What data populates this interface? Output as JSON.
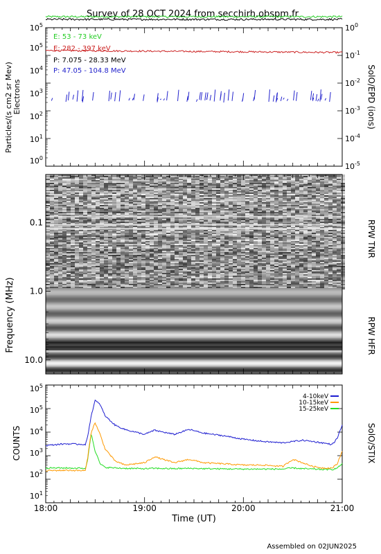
{
  "title": "Survey of 28 OCT 2024 from secchirh.obspm.fr",
  "footer": "Assembled on 02JUN2025",
  "x_axis": {
    "label": "Time (UT)",
    "ticks": [
      "18:00",
      "19:00",
      "20:00",
      "21:00"
    ],
    "range": [
      "18:00",
      "21:00"
    ]
  },
  "colors": {
    "electrons_53_73": "#22cc22",
    "electrons_282_397": "#cc2222",
    "protons_7": "#000000",
    "protons_47": "#2222cc",
    "stix_4_10": "#1c1cd0",
    "stix_10_15": "#ff9900",
    "stix_15_25": "#22dd22"
  },
  "chart_data": [
    {
      "type": "line",
      "panel": "SolO/EPD",
      "ylabel": "Particles/(s cm2 sr Mev)",
      "ylabel2": "Electrons",
      "right_label": "SolO/EPD (ions)",
      "yscale": "log",
      "ylim": [
        1,
        100000
      ],
      "y_ticks": [
        "10^0",
        "10^1",
        "10^2",
        "10^3",
        "10^4",
        "10^5",
        "10^5"
      ],
      "right_ylim": [
        1e-05,
        1
      ],
      "right_ticks": [
        "10^-5",
        "10^-4",
        "10^-3",
        "10^-2",
        "10^-1",
        "10^0"
      ],
      "series": [
        {
          "name": "E: 53 - 73 keV",
          "color_key": "electrons_53_73",
          "level": 250000,
          "jitter": 0.035
        },
        {
          "name": "E: 282 - 397 keV",
          "color_key": "electrons_282_397",
          "level": 15000,
          "jitter": 0.03
        },
        {
          "name": "P: 7.075 - 28.33 MeV",
          "color_key": "protons_7",
          "level": 200000,
          "jitter": 0.035
        },
        {
          "name": "P: 47.05 - 104.8 MeV",
          "color_key": "protons_47",
          "baseline": 200,
          "spike_max": 600
        }
      ]
    },
    {
      "type": "heatmap",
      "panel": "RPW",
      "ylabel": "Frequency (MHz)",
      "yscale": "log",
      "ylim": [
        0.02,
        16
      ],
      "y_ticks": [
        "0.1",
        "1.0",
        "10.0"
      ],
      "tnr_label": "RPW TNR",
      "hfr_label": "RPW HFR",
      "tnr_range_mhz": [
        0.02,
        0.9
      ],
      "hfr_range_mhz": [
        0.9,
        16
      ]
    },
    {
      "type": "line",
      "panel": "SolO/STIX",
      "ylabel": "COUNTS",
      "right_label": "SolO/STIX",
      "yscale": "log",
      "ylim": [
        10,
        1000000
      ],
      "y_ticks": [
        "10^1",
        "10^2",
        "10^3",
        "10^4",
        "10^5",
        "10^5"
      ],
      "x_hours": [
        18.0,
        18.2,
        18.4,
        18.42,
        18.46,
        18.5,
        18.55,
        18.6,
        18.7,
        18.8,
        19.0,
        19.1,
        19.3,
        19.45,
        19.6,
        19.8,
        20.0,
        20.2,
        20.4,
        20.5,
        20.6,
        20.7,
        20.8,
        20.9,
        20.95,
        21.0
      ],
      "series": [
        {
          "name": "4-10keV",
          "color_key": "stix_4_10",
          "values": [
            2700,
            3200,
            3000,
            5000,
            50000,
            220000,
            150000,
            50000,
            20000,
            13000,
            8000,
            12000,
            8000,
            13000,
            9000,
            7000,
            5000,
            4000,
            3500,
            4000,
            4500,
            4000,
            3500,
            3000,
            5500,
            20000
          ]
        },
        {
          "name": "10-15keV",
          "color_key": "stix_10_15",
          "values": [
            230,
            240,
            230,
            600,
            10000,
            25000,
            8000,
            2000,
            600,
            400,
            500,
            900,
            500,
            700,
            500,
            450,
            400,
            400,
            350,
            700,
            500,
            350,
            300,
            300,
            450,
            1600
          ]
        },
        {
          "name": "15-25keV",
          "color_key": "stix_15_25",
          "values": [
            300,
            300,
            290,
            500,
            9000,
            1600,
            450,
            320,
            300,
            290,
            280,
            290,
            280,
            290,
            280,
            275,
            270,
            270,
            270,
            300,
            280,
            270,
            260,
            260,
            300,
            450
          ]
        }
      ]
    }
  ]
}
